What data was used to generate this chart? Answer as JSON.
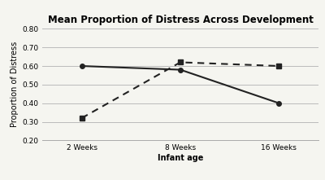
{
  "title": "Mean Proportion of Distress Across Development",
  "xlabel": "Infant age",
  "ylabel": "Proportion of Distress",
  "x_labels": [
    "2 Weeks",
    "8 Weeks",
    "16 Weeks"
  ],
  "x_positions": [
    0,
    1,
    2
  ],
  "pre_feeding_delay": [
    0.6,
    0.58,
    0.4
  ],
  "mid_feeding_delay": [
    0.32,
    0.62,
    0.6
  ],
  "ylim": [
    0.2,
    0.8
  ],
  "yticks": [
    0.2,
    0.3,
    0.4,
    0.5,
    0.6,
    0.7,
    0.8
  ],
  "line_color": "#222222",
  "bg_color": "#f5f5f0",
  "grid_color": "#bbbbbb",
  "title_fontsize": 8.5,
  "label_fontsize": 7,
  "tick_fontsize": 6.5,
  "legend_fontsize": 6.5
}
